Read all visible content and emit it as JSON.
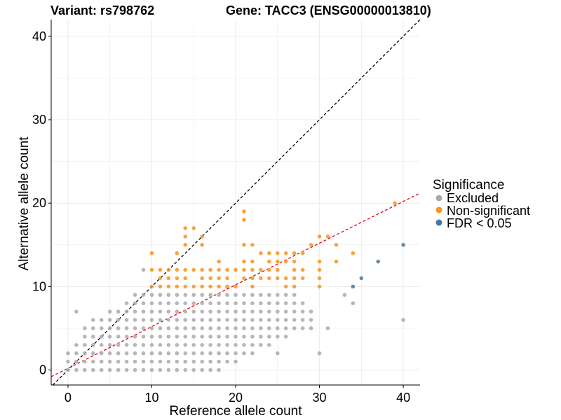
{
  "chart_data": {
    "type": "scatter",
    "title_left": "Variant: rs798762",
    "title_right": "Gene: TACC3 (ENSG00000013810)",
    "xlabel": "Reference allele count",
    "ylabel": "Alternative allele count",
    "xlim": [
      -2,
      42
    ],
    "ylim": [
      -1.8,
      42
    ],
    "x_ticks": [
      0,
      10,
      20,
      30,
      40
    ],
    "y_ticks": [
      0,
      10,
      20,
      30,
      40
    ],
    "grid": true,
    "legend": {
      "title": "Significance",
      "placement": "right",
      "entries": [
        {
          "label": "Excluded",
          "color": "#AAAAAA"
        },
        {
          "label": "Non-significant",
          "color": "#F7941D"
        },
        {
          "label": "FDR < 0.05",
          "color": "#4A77A3"
        }
      ]
    },
    "reference_lines": [
      {
        "name": "y = x",
        "slope": 1,
        "intercept": 0,
        "color": "#000000",
        "dash": "dashed"
      },
      {
        "name": "fit",
        "slope": 0.5,
        "intercept": 0.2,
        "color": "#E8000B",
        "dash": "dashed"
      }
    ],
    "series": [
      {
        "name": "Excluded",
        "color": "#AAAAAA",
        "points": [
          [
            0,
            0
          ],
          [
            0,
            1
          ],
          [
            0,
            2
          ],
          [
            1,
            0
          ],
          [
            1,
            1
          ],
          [
            1,
            2
          ],
          [
            1,
            3
          ],
          [
            1,
            7
          ],
          [
            2,
            0
          ],
          [
            2,
            1
          ],
          [
            2,
            2
          ],
          [
            2,
            3
          ],
          [
            2,
            4
          ],
          [
            2,
            5
          ],
          [
            3,
            0
          ],
          [
            3,
            1
          ],
          [
            3,
            2
          ],
          [
            3,
            3
          ],
          [
            3,
            4
          ],
          [
            3,
            5
          ],
          [
            3,
            6
          ],
          [
            4,
            0
          ],
          [
            4,
            1
          ],
          [
            4,
            2
          ],
          [
            4,
            3
          ],
          [
            4,
            4
          ],
          [
            4,
            5
          ],
          [
            4,
            6
          ],
          [
            5,
            0
          ],
          [
            5,
            1
          ],
          [
            5,
            2
          ],
          [
            5,
            3
          ],
          [
            5,
            4
          ],
          [
            5,
            5
          ],
          [
            5,
            6
          ],
          [
            5,
            7
          ],
          [
            6,
            0
          ],
          [
            6,
            1
          ],
          [
            6,
            2
          ],
          [
            6,
            3
          ],
          [
            6,
            4
          ],
          [
            6,
            5
          ],
          [
            6,
            6
          ],
          [
            6,
            7
          ],
          [
            7,
            0
          ],
          [
            7,
            1
          ],
          [
            7,
            2
          ],
          [
            7,
            3
          ],
          [
            7,
            4
          ],
          [
            7,
            5
          ],
          [
            7,
            6
          ],
          [
            7,
            7
          ],
          [
            7,
            8
          ],
          [
            8,
            0
          ],
          [
            8,
            1
          ],
          [
            8,
            2
          ],
          [
            8,
            3
          ],
          [
            8,
            4
          ],
          [
            8,
            5
          ],
          [
            8,
            6
          ],
          [
            8,
            7
          ],
          [
            8,
            8
          ],
          [
            8,
            9
          ],
          [
            9,
            0
          ],
          [
            9,
            1
          ],
          [
            9,
            2
          ],
          [
            9,
            3
          ],
          [
            9,
            4
          ],
          [
            9,
            5
          ],
          [
            9,
            6
          ],
          [
            9,
            7
          ],
          [
            9,
            8
          ],
          [
            9,
            9
          ],
          [
            9,
            12
          ],
          [
            10,
            0
          ],
          [
            10,
            1
          ],
          [
            10,
            2
          ],
          [
            10,
            3
          ],
          [
            10,
            4
          ],
          [
            10,
            5
          ],
          [
            10,
            6
          ],
          [
            10,
            7
          ],
          [
            10,
            8
          ],
          [
            10,
            9
          ],
          [
            11,
            0
          ],
          [
            11,
            1
          ],
          [
            11,
            2
          ],
          [
            11,
            3
          ],
          [
            11,
            4
          ],
          [
            11,
            5
          ],
          [
            11,
            6
          ],
          [
            11,
            7
          ],
          [
            11,
            8
          ],
          [
            11,
            9
          ],
          [
            12,
            0
          ],
          [
            12,
            1
          ],
          [
            12,
            2
          ],
          [
            12,
            3
          ],
          [
            12,
            4
          ],
          [
            12,
            5
          ],
          [
            12,
            6
          ],
          [
            12,
            7
          ],
          [
            12,
            8
          ],
          [
            12,
            9
          ],
          [
            13,
            0
          ],
          [
            13,
            1
          ],
          [
            13,
            2
          ],
          [
            13,
            3
          ],
          [
            13,
            4
          ],
          [
            13,
            5
          ],
          [
            13,
            6
          ],
          [
            13,
            7
          ],
          [
            13,
            8
          ],
          [
            13,
            9
          ],
          [
            14,
            0
          ],
          [
            14,
            1
          ],
          [
            14,
            2
          ],
          [
            14,
            3
          ],
          [
            14,
            4
          ],
          [
            14,
            5
          ],
          [
            14,
            6
          ],
          [
            14,
            7
          ],
          [
            14,
            8
          ],
          [
            14,
            9
          ],
          [
            15,
            0
          ],
          [
            15,
            1
          ],
          [
            15,
            2
          ],
          [
            15,
            3
          ],
          [
            15,
            4
          ],
          [
            15,
            5
          ],
          [
            15,
            6
          ],
          [
            15,
            7
          ],
          [
            15,
            8
          ],
          [
            15,
            9
          ],
          [
            16,
            0
          ],
          [
            16,
            1
          ],
          [
            16,
            2
          ],
          [
            16,
            3
          ],
          [
            16,
            4
          ],
          [
            16,
            5
          ],
          [
            16,
            6
          ],
          [
            16,
            7
          ],
          [
            16,
            8
          ],
          [
            16,
            9
          ],
          [
            17,
            0
          ],
          [
            17,
            1
          ],
          [
            17,
            2
          ],
          [
            17,
            3
          ],
          [
            17,
            4
          ],
          [
            17,
            5
          ],
          [
            17,
            6
          ],
          [
            17,
            7
          ],
          [
            17,
            8
          ],
          [
            17,
            9
          ],
          [
            18,
            0
          ],
          [
            18,
            1
          ],
          [
            18,
            2
          ],
          [
            18,
            3
          ],
          [
            18,
            4
          ],
          [
            18,
            5
          ],
          [
            18,
            6
          ],
          [
            18,
            7
          ],
          [
            18,
            8
          ],
          [
            18,
            9
          ],
          [
            19,
            1
          ],
          [
            19,
            2
          ],
          [
            19,
            3
          ],
          [
            19,
            4
          ],
          [
            19,
            5
          ],
          [
            19,
            6
          ],
          [
            19,
            7
          ],
          [
            19,
            8
          ],
          [
            19,
            9
          ],
          [
            20,
            1
          ],
          [
            20,
            2
          ],
          [
            20,
            3
          ],
          [
            20,
            4
          ],
          [
            20,
            5
          ],
          [
            20,
            6
          ],
          [
            20,
            7
          ],
          [
            20,
            8
          ],
          [
            20,
            9
          ],
          [
            21,
            2
          ],
          [
            21,
            3
          ],
          [
            21,
            4
          ],
          [
            21,
            5
          ],
          [
            21,
            6
          ],
          [
            21,
            7
          ],
          [
            21,
            8
          ],
          [
            21,
            9
          ],
          [
            22,
            2
          ],
          [
            22,
            3
          ],
          [
            22,
            4
          ],
          [
            22,
            5
          ],
          [
            22,
            6
          ],
          [
            22,
            7
          ],
          [
            22,
            8
          ],
          [
            22,
            9
          ],
          [
            23,
            3
          ],
          [
            23,
            4
          ],
          [
            23,
            5
          ],
          [
            23,
            6
          ],
          [
            23,
            7
          ],
          [
            23,
            8
          ],
          [
            23,
            9
          ],
          [
            24,
            3
          ],
          [
            24,
            4
          ],
          [
            24,
            5
          ],
          [
            24,
            6
          ],
          [
            24,
            7
          ],
          [
            24,
            8
          ],
          [
            24,
            9
          ],
          [
            25,
            2
          ],
          [
            25,
            4
          ],
          [
            25,
            5
          ],
          [
            25,
            6
          ],
          [
            25,
            7
          ],
          [
            25,
            8
          ],
          [
            25,
            9
          ],
          [
            26,
            4
          ],
          [
            26,
            5
          ],
          [
            26,
            6
          ],
          [
            26,
            7
          ],
          [
            26,
            8
          ],
          [
            26,
            9
          ],
          [
            27,
            5
          ],
          [
            27,
            6
          ],
          [
            27,
            7
          ],
          [
            27,
            8
          ],
          [
            27,
            9
          ],
          [
            28,
            5
          ],
          [
            28,
            6
          ],
          [
            28,
            7
          ],
          [
            28,
            8
          ],
          [
            29,
            5
          ],
          [
            29,
            6
          ],
          [
            29,
            7
          ],
          [
            30,
            2
          ],
          [
            31,
            5
          ],
          [
            33,
            9
          ],
          [
            34,
            8
          ],
          [
            40,
            6
          ]
        ]
      },
      {
        "name": "Non-significant",
        "color": "#F7941D",
        "points": [
          [
            10,
            10
          ],
          [
            10,
            12
          ],
          [
            10,
            14
          ],
          [
            11,
            10
          ],
          [
            11,
            11
          ],
          [
            11,
            12
          ],
          [
            12,
            10
          ],
          [
            12,
            11
          ],
          [
            12,
            12
          ],
          [
            13,
            10
          ],
          [
            13,
            11
          ],
          [
            13,
            12
          ],
          [
            13,
            14
          ],
          [
            14,
            10
          ],
          [
            14,
            11
          ],
          [
            14,
            12
          ],
          [
            14,
            15
          ],
          [
            14,
            16
          ],
          [
            14,
            17
          ],
          [
            15,
            10
          ],
          [
            15,
            12
          ],
          [
            15,
            17
          ],
          [
            16,
            10
          ],
          [
            16,
            11
          ],
          [
            16,
            12
          ],
          [
            16,
            15
          ],
          [
            16,
            16
          ],
          [
            17,
            10
          ],
          [
            17,
            11
          ],
          [
            17,
            12
          ],
          [
            18,
            10
          ],
          [
            18,
            11
          ],
          [
            18,
            12
          ],
          [
            18,
            13
          ],
          [
            19,
            10
          ],
          [
            19,
            11
          ],
          [
            19,
            12
          ],
          [
            20,
            10
          ],
          [
            20,
            12
          ],
          [
            21,
            11
          ],
          [
            21,
            12
          ],
          [
            21,
            13
          ],
          [
            21,
            15
          ],
          [
            21,
            18
          ],
          [
            21,
            19
          ],
          [
            22,
            10
          ],
          [
            22,
            11
          ],
          [
            22,
            12
          ],
          [
            22,
            13
          ],
          [
            22,
            15
          ],
          [
            23,
            11
          ],
          [
            23,
            12
          ],
          [
            23,
            14
          ],
          [
            24,
            11
          ],
          [
            24,
            12
          ],
          [
            24,
            13
          ],
          [
            24,
            14
          ],
          [
            25,
            11
          ],
          [
            25,
            12
          ],
          [
            25,
            13
          ],
          [
            25,
            14
          ],
          [
            26,
            10
          ],
          [
            26,
            11
          ],
          [
            26,
            13
          ],
          [
            26,
            14
          ],
          [
            27,
            10
          ],
          [
            27,
            11
          ],
          [
            27,
            12
          ],
          [
            27,
            13
          ],
          [
            27,
            14
          ],
          [
            28,
            11
          ],
          [
            28,
            12
          ],
          [
            28,
            14
          ],
          [
            29,
            15
          ],
          [
            30,
            10
          ],
          [
            30,
            11
          ],
          [
            30,
            12
          ],
          [
            30,
            13
          ],
          [
            30,
            16
          ],
          [
            31,
            16
          ],
          [
            32,
            13
          ],
          [
            32,
            15
          ],
          [
            34,
            14
          ],
          [
            39,
            20
          ]
        ]
      },
      {
        "name": "FDR < 0.05",
        "color": "#4A77A3",
        "points": [
          [
            34,
            10
          ],
          [
            35,
            11
          ],
          [
            37,
            13
          ],
          [
            40,
            15
          ]
        ]
      }
    ]
  }
}
